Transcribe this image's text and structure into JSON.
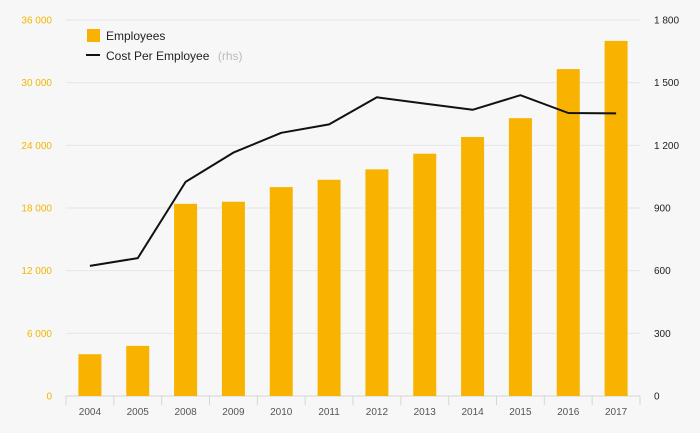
{
  "chart_data": {
    "type": "bar+line",
    "categories": [
      "2004",
      "2005",
      "2008",
      "2009",
      "2010",
      "2011",
      "2012",
      "2013",
      "2014",
      "2015",
      "2016",
      "2017"
    ],
    "series": [
      {
        "name": "Employees",
        "type": "bar",
        "axis": "left",
        "color": "#f8b200",
        "values": [
          4000,
          4800,
          18400,
          18600,
          20000,
          20700,
          21700,
          23200,
          24800,
          26600,
          31300,
          34000
        ]
      },
      {
        "name": "Cost Per Employee",
        "type": "line",
        "axis": "right",
        "color": "#111111",
        "values": [
          623,
          660,
          1025,
          1165,
          1260,
          1300,
          1430,
          1400,
          1370,
          1440,
          1355,
          1353
        ]
      }
    ],
    "y_left": {
      "min": 0,
      "max": 36000,
      "ticks": [
        0,
        6000,
        12000,
        18000,
        24000,
        30000,
        36000
      ],
      "tick_labels": [
        "0",
        "6 000",
        "12 000",
        "18 000",
        "24 000",
        "30 000",
        "36 000"
      ],
      "color": "#f2b600"
    },
    "y_right": {
      "min": 0,
      "max": 1800,
      "ticks": [
        0,
        300,
        600,
        900,
        1200,
        1500,
        1800
      ],
      "tick_labels": [
        "0",
        "300",
        "600",
        "900",
        "1 200",
        "1 500",
        "1 800"
      ]
    },
    "legend": {
      "position": "top-left",
      "items": [
        {
          "label": "Employees",
          "suffix": ""
        },
        {
          "label": "Cost Per Employee",
          "suffix": "(rhs)"
        }
      ]
    },
    "grid": true
  }
}
